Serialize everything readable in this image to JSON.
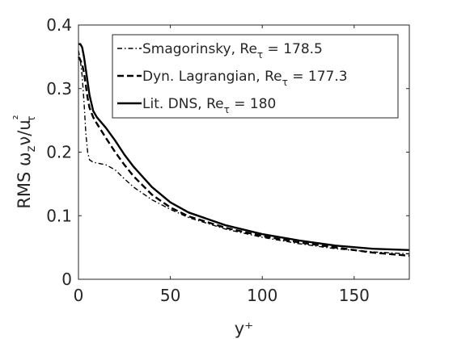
{
  "chart_data": {
    "type": "line",
    "title": "",
    "xlabel": "y⁺",
    "ylabel": "RMS ωzν/uτ²",
    "xlim": [
      0,
      180
    ],
    "ylim": [
      0,
      0.4
    ],
    "xticks": [
      0,
      50,
      100,
      150
    ],
    "xtick_labels": [
      "0",
      "50",
      "100",
      "150"
    ],
    "yticks": [
      0,
      0.1,
      0.2,
      0.3,
      0.4
    ],
    "ytick_labels": [
      "0",
      "0.1",
      "0.2",
      "0.3",
      "0.4"
    ],
    "grid": false,
    "legend_position": "top-right",
    "series": [
      {
        "name": "Smagorinsky, Reτ = 178.5",
        "style": "dashdot",
        "x": [
          0,
          1,
          2,
          3,
          4,
          5,
          6,
          8,
          10,
          15,
          20,
          25,
          30,
          40,
          50,
          60,
          80,
          100,
          120,
          140,
          160,
          180
        ],
        "y": [
          0.36,
          0.345,
          0.32,
          0.28,
          0.23,
          0.2,
          0.188,
          0.184,
          0.183,
          0.18,
          0.172,
          0.158,
          0.145,
          0.125,
          0.11,
          0.097,
          0.079,
          0.066,
          0.056,
          0.048,
          0.043,
          0.04
        ]
      },
      {
        "name": "Dyn. Lagrangian, Reτ = 177.3",
        "style": "dashed",
        "x": [
          0,
          1,
          2,
          3,
          4,
          5,
          6,
          8,
          10,
          15,
          20,
          25,
          30,
          40,
          50,
          60,
          80,
          100,
          120,
          140,
          160,
          180
        ],
        "y": [
          0.35,
          0.345,
          0.338,
          0.325,
          0.305,
          0.285,
          0.27,
          0.255,
          0.245,
          0.222,
          0.2,
          0.18,
          0.162,
          0.133,
          0.113,
          0.099,
          0.081,
          0.068,
          0.058,
          0.05,
          0.042,
          0.037
        ]
      },
      {
        "name": "Lit. DNS, Reτ = 180",
        "style": "solid",
        "x": [
          0,
          1,
          2,
          3,
          4,
          5,
          6,
          8,
          10,
          15,
          20,
          25,
          30,
          40,
          50,
          60,
          80,
          100,
          120,
          140,
          160,
          180
        ],
        "y": [
          0.37,
          0.37,
          0.365,
          0.35,
          0.33,
          0.31,
          0.29,
          0.265,
          0.255,
          0.238,
          0.218,
          0.196,
          0.177,
          0.145,
          0.121,
          0.105,
          0.085,
          0.071,
          0.061,
          0.053,
          0.048,
          0.046
        ]
      }
    ]
  }
}
